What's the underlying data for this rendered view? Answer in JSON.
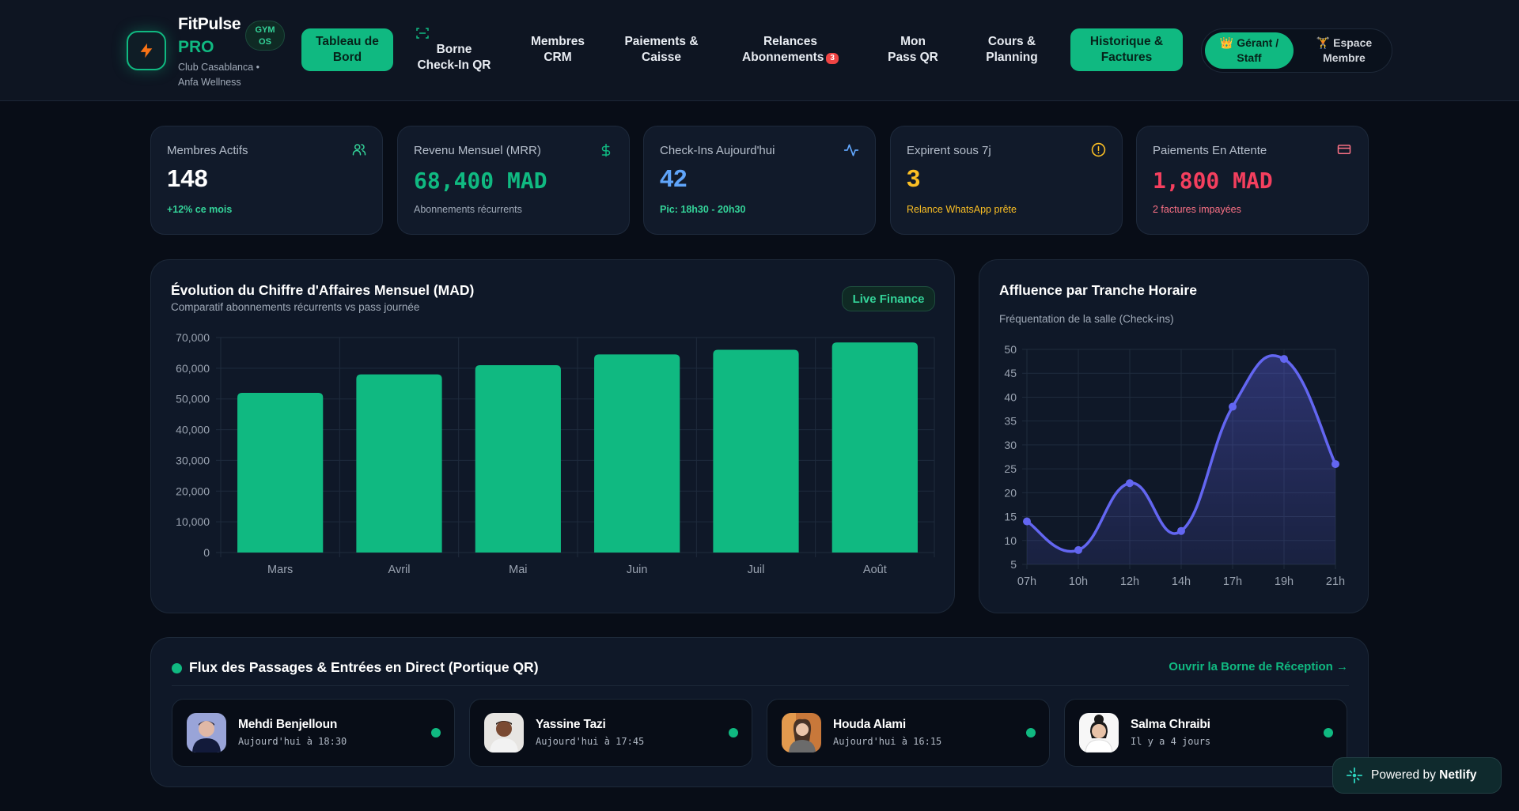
{
  "brand": {
    "name": "FitPulse",
    "pro": "PRO",
    "badge_line1": "GYM",
    "badge_line2": "OS",
    "subtitle": "Club Casablanca • Anfa Wellness"
  },
  "nav": {
    "items": [
      {
        "line1": "Tableau de",
        "line2": "Bord",
        "active": true
      },
      {
        "line1": "Borne",
        "line2": "Check-In QR",
        "active": false
      },
      {
        "line1": "Membres",
        "line2": "CRM",
        "active": false
      },
      {
        "line1": "Paiements &",
        "line2": "Caisse",
        "active": false
      },
      {
        "line1": "Relances",
        "line2": "Abonnements",
        "badge": "3",
        "active": false
      },
      {
        "line1": "Mon",
        "line2": "Pass QR",
        "active": false
      },
      {
        "line1": "Cours &",
        "line2": "Planning",
        "active": false
      },
      {
        "line1": "Historique &",
        "line2": "Factures",
        "active": true
      }
    ]
  },
  "roles": {
    "staff_line1": "👑 Gérant /",
    "staff_line2": "Staff",
    "member_line1": "🏋 Espace",
    "member_line2": "Membre"
  },
  "kpis": [
    {
      "label": "Membres Actifs",
      "value": "148",
      "sub": "+12% ce mois",
      "value_color": "#ffffff",
      "sub_color": "#34d399",
      "icon": "users-icon"
    },
    {
      "label": "Revenu Mensuel (MRR)",
      "value": "68,400 MAD",
      "sub": "Abonnements récurrents",
      "value_color": "#10b981",
      "sub_color": "#a0aab8",
      "icon": "dollar-icon"
    },
    {
      "label": "Check-Ins Aujourd'hui",
      "value": "42",
      "sub": "Pic: 18h30 - 20h30",
      "value_color": "#60a5fa",
      "sub_color": "#34d399",
      "icon": "activity-icon"
    },
    {
      "label": "Expirent sous 7j",
      "value": "3",
      "sub": "Relance WhatsApp prête",
      "value_color": "#fbbf24",
      "sub_color": "#fbbf24",
      "icon": "alert-circle-icon"
    },
    {
      "label": "Paiements En Attente",
      "value": "1,800 MAD",
      "sub": "2 factures impayées",
      "value_color": "#f43f5e",
      "sub_color": "#fb7185",
      "icon": "credit-card-icon"
    }
  ],
  "revenue_panel": {
    "title": "Évolution du Chiffre d'Affaires Mensuel (MAD)",
    "subtitle": "Comparatif abonnements récurrents vs pass journée",
    "badge": "Live Finance"
  },
  "traffic_panel": {
    "title": "Affluence par Tranche Horaire",
    "subtitle": "Fréquentation de la salle (Check-ins)"
  },
  "chart_data": [
    {
      "type": "bar",
      "categories": [
        "Mars",
        "Avril",
        "Mai",
        "Juin",
        "Juil",
        "Août"
      ],
      "values": [
        52000,
        58000,
        61000,
        64500,
        66000,
        68400
      ],
      "ylim": [
        0,
        70000
      ],
      "yticks": [
        "0",
        "10,000",
        "20,000",
        "30,000",
        "40,000",
        "50,000",
        "60,000",
        "70,000"
      ],
      "grid": true,
      "color": "#10b981"
    },
    {
      "type": "area",
      "categories": [
        "07h",
        "10h",
        "12h",
        "14h",
        "17h",
        "19h",
        "21h"
      ],
      "values": [
        14,
        8,
        22,
        12,
        38,
        48,
        26
      ],
      "ylim": [
        5,
        50
      ],
      "yticks": [
        "5",
        "10",
        "15",
        "20",
        "25",
        "30",
        "35",
        "40",
        "45",
        "50"
      ],
      "grid": true,
      "color": "#6366f1"
    }
  ],
  "feed": {
    "title": "Flux des Passages & Entrées en Direct (Portique QR)",
    "link": "Ouvrir la Borne de Réception →",
    "visits": [
      {
        "name": "Mehdi Benjelloun",
        "time": "Aujourd'hui à 18:30"
      },
      {
        "name": "Yassine Tazi",
        "time": "Aujourd'hui à 17:45"
      },
      {
        "name": "Houda Alami",
        "time": "Aujourd'hui à 16:15"
      },
      {
        "name": "Salma Chraibi",
        "time": "Il y a 4 jours"
      }
    ]
  },
  "netlify": {
    "prefix": "Powered by",
    "name": "Netlify"
  }
}
